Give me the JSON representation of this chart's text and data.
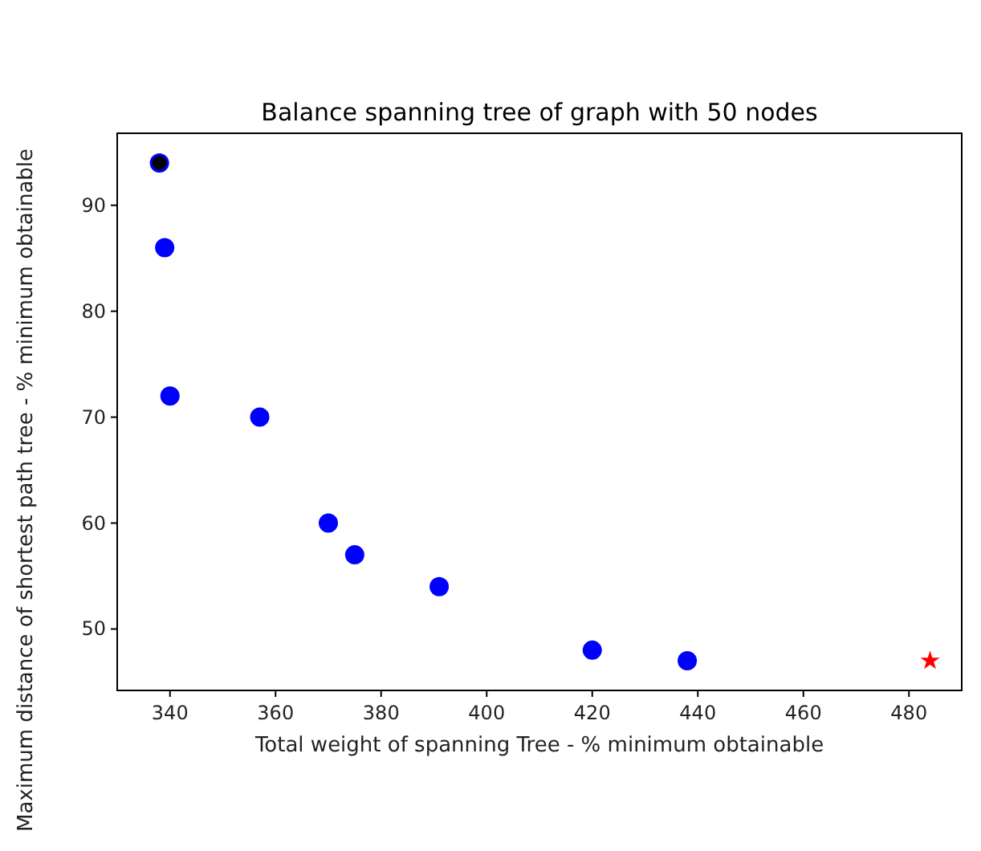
{
  "chart_data": {
    "type": "scatter",
    "title": "Balance spanning tree of graph with 50 nodes",
    "xlabel": "Total weight of spanning Tree  - % minimum obtainable",
    "ylabel": "Maximum distance of shortest path tree - % minimum obtainable",
    "xlim": [
      330,
      490
    ],
    "xticks": [
      340,
      360,
      380,
      400,
      420,
      440,
      460,
      480
    ],
    "ylim": [
      44.2,
      96.8
    ],
    "yticks": [
      50,
      60,
      70,
      80,
      90
    ],
    "grid": false,
    "series": [
      {
        "color": "#0000ff",
        "marker": "circle",
        "x": [
          338,
          339,
          340,
          357,
          370,
          375,
          391,
          420,
          438
        ],
        "values": [
          94,
          86,
          72,
          70,
          60,
          57,
          54,
          48,
          47
        ]
      },
      {
        "color": "#000000",
        "marker": "circle",
        "x": [
          338
        ],
        "values": [
          94
        ]
      },
      {
        "color": "#ff0000",
        "marker": "star",
        "x": [
          484
        ],
        "values": [
          47
        ]
      }
    ]
  }
}
